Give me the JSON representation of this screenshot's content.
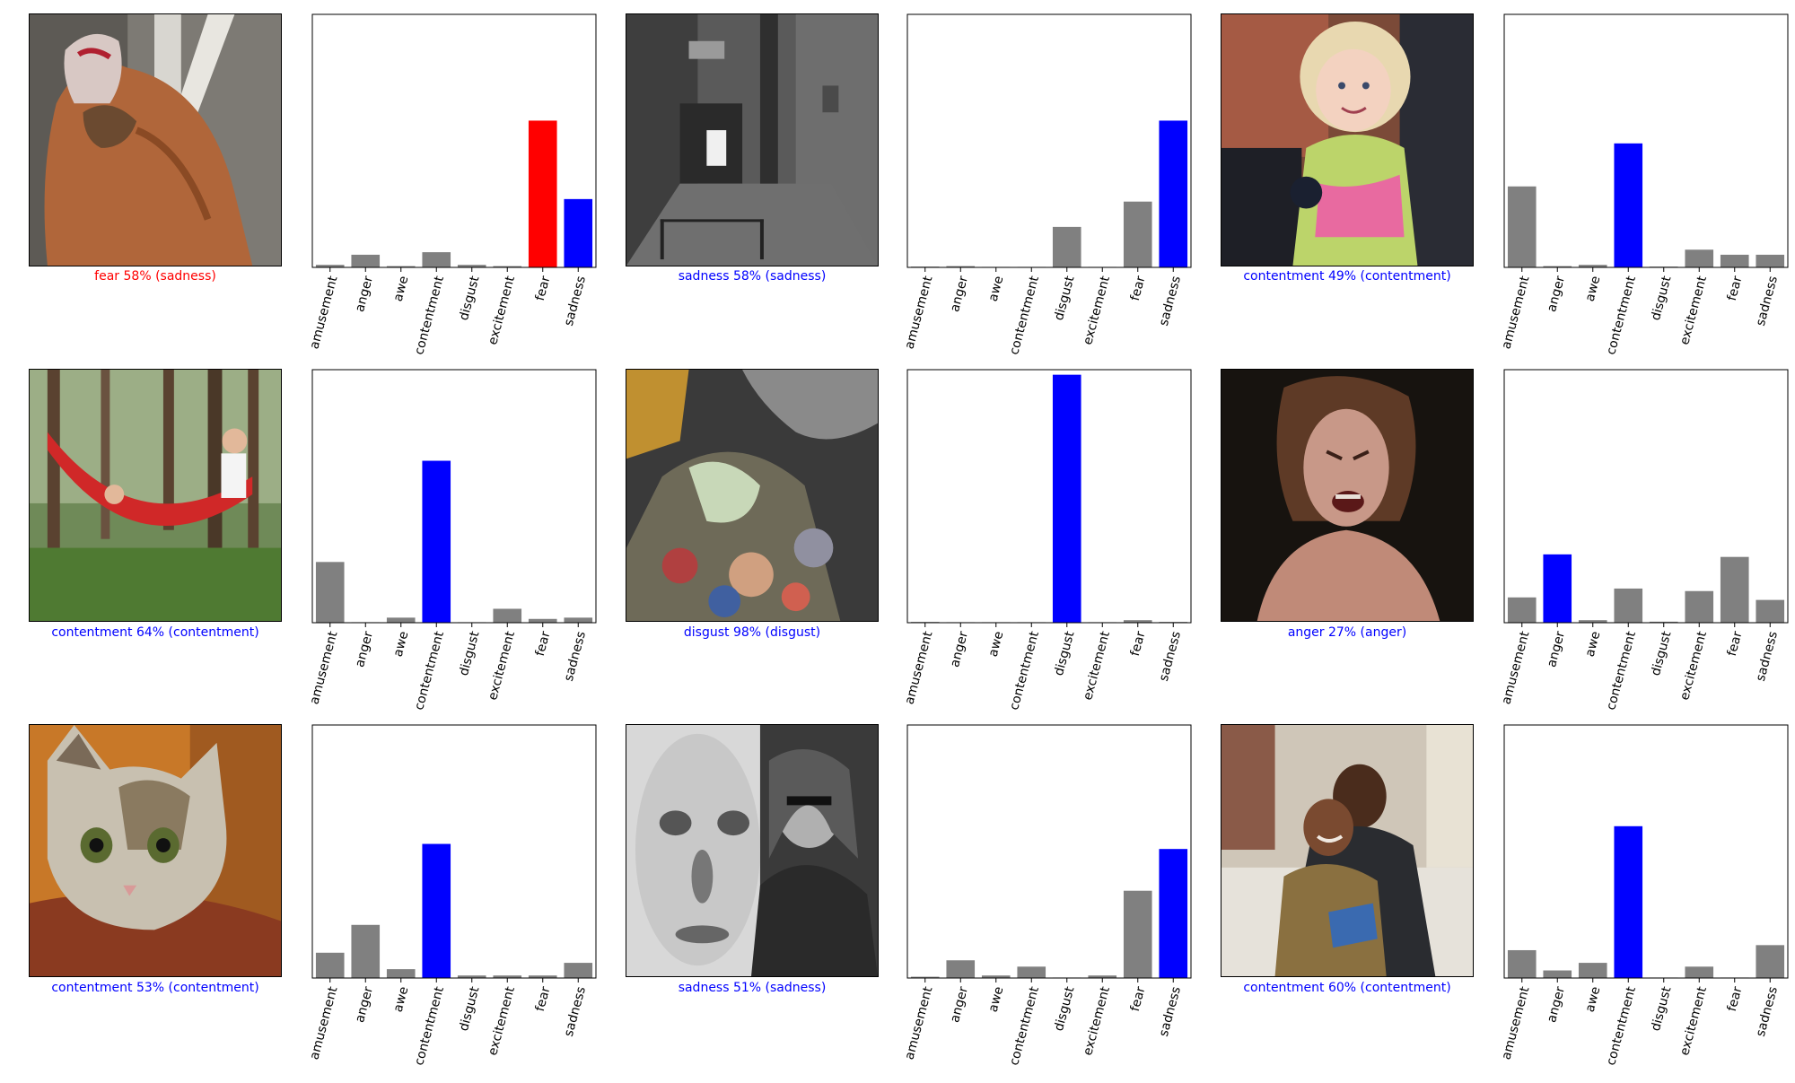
{
  "colors": {
    "correct": "#0000ff",
    "wrong": "#ff0000",
    "neutral": "#808080"
  },
  "panels": [
    {
      "caption": "fear 58% (sadness)",
      "correct": false,
      "predicted": 6,
      "true_label": 7,
      "image_subject": "person-wrapped-in-blanket-image"
    },
    {
      "caption": "sadness 58% (sadness)",
      "correct": true,
      "predicted": 7,
      "true_label": 7,
      "image_subject": "grey-alley-image"
    },
    {
      "caption": "contentment 49% (contentment)",
      "correct": true,
      "predicted": 3,
      "true_label": 3,
      "image_subject": "smiling-toddler-image"
    },
    {
      "caption": "contentment 64% (contentment)",
      "correct": true,
      "predicted": 3,
      "true_label": 3,
      "image_subject": "children-in-hammock-image"
    },
    {
      "caption": "disgust 98% (disgust)",
      "correct": true,
      "predicted": 4,
      "true_label": 4,
      "image_subject": "garbage-pile-excavator-image"
    },
    {
      "caption": "anger 27% (anger)",
      "correct": true,
      "predicted": 1,
      "true_label": 1,
      "image_subject": "angry-woman-face-image"
    },
    {
      "caption": "contentment 53% (contentment)",
      "correct": true,
      "predicted": 3,
      "true_label": 3,
      "image_subject": "kitten-image"
    },
    {
      "caption": "sadness 51% (sadness)",
      "correct": true,
      "predicted": 7,
      "true_label": 7,
      "image_subject": "blurred-face-and-man-image"
    },
    {
      "caption": "contentment 60% (contentment)",
      "correct": true,
      "predicted": 3,
      "true_label": 3,
      "image_subject": "couple-reading-book-image"
    }
  ],
  "chart_data": [
    {
      "type": "bar",
      "categories": [
        "amusement",
        "anger",
        "awe",
        "contentment",
        "disgust",
        "excitement",
        "fear",
        "sadness"
      ],
      "values": [
        0.01,
        0.05,
        0.005,
        0.06,
        0.01,
        0.005,
        0.58,
        0.27
      ],
      "ylim": [
        0,
        1
      ]
    },
    {
      "type": "bar",
      "categories": [
        "amusement",
        "anger",
        "awe",
        "contentment",
        "disgust",
        "excitement",
        "fear",
        "sadness"
      ],
      "values": [
        0.003,
        0.005,
        0.002,
        0.002,
        0.16,
        0.002,
        0.26,
        0.58
      ],
      "ylim": [
        0,
        1
      ]
    },
    {
      "type": "bar",
      "categories": [
        "amusement",
        "anger",
        "awe",
        "contentment",
        "disgust",
        "excitement",
        "fear",
        "sadness"
      ],
      "values": [
        0.32,
        0.005,
        0.01,
        0.49,
        0.003,
        0.07,
        0.05,
        0.05
      ],
      "ylim": [
        0,
        1
      ]
    },
    {
      "type": "bar",
      "categories": [
        "amusement",
        "anger",
        "awe",
        "contentment",
        "disgust",
        "excitement",
        "fear",
        "sadness"
      ],
      "values": [
        0.24,
        0.002,
        0.02,
        0.64,
        0.002,
        0.055,
        0.015,
        0.02
      ],
      "ylim": [
        0,
        1
      ]
    },
    {
      "type": "bar",
      "categories": [
        "amusement",
        "anger",
        "awe",
        "contentment",
        "disgust",
        "excitement",
        "fear",
        "sadness"
      ],
      "values": [
        0.003,
        0.002,
        0.002,
        0.002,
        0.98,
        0.002,
        0.01,
        0.003
      ],
      "ylim": [
        0,
        1
      ]
    },
    {
      "type": "bar",
      "categories": [
        "amusement",
        "anger",
        "awe",
        "contentment",
        "disgust",
        "excitement",
        "fear",
        "sadness"
      ],
      "values": [
        0.1,
        0.27,
        0.01,
        0.135,
        0.004,
        0.125,
        0.26,
        0.09
      ],
      "ylim": [
        0,
        1
      ]
    },
    {
      "type": "bar",
      "categories": [
        "amusement",
        "anger",
        "awe",
        "contentment",
        "disgust",
        "excitement",
        "fear",
        "sadness"
      ],
      "values": [
        0.1,
        0.21,
        0.035,
        0.53,
        0.01,
        0.01,
        0.01,
        0.06
      ],
      "ylim": [
        0,
        1
      ]
    },
    {
      "type": "bar",
      "categories": [
        "amusement",
        "anger",
        "awe",
        "contentment",
        "disgust",
        "excitement",
        "fear",
        "sadness"
      ],
      "values": [
        0.005,
        0.07,
        0.01,
        0.045,
        0.002,
        0.01,
        0.345,
        0.51
      ],
      "ylim": [
        0,
        1
      ]
    },
    {
      "type": "bar",
      "categories": [
        "amusement",
        "anger",
        "awe",
        "contentment",
        "disgust",
        "excitement",
        "fear",
        "sadness"
      ],
      "values": [
        0.11,
        0.03,
        0.06,
        0.6,
        0.002,
        0.045,
        0.002,
        0.13
      ],
      "ylim": [
        0,
        1
      ]
    }
  ]
}
